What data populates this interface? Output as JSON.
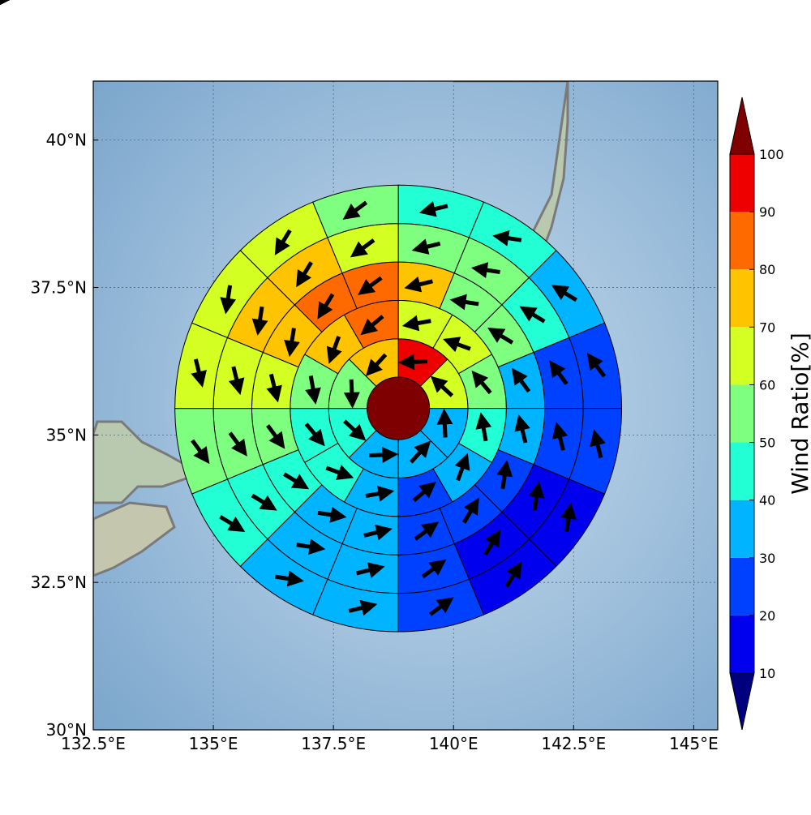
{
  "chart_data": {
    "type": "heatmap",
    "title": "",
    "xlabel": "",
    "ylabel": "",
    "xlim": [
      132.5,
      145.5
    ],
    "ylim": [
      30,
      41
    ],
    "x_ticks": [
      132.5,
      135,
      137.5,
      140,
      142.5,
      145
    ],
    "x_tick_labels": [
      "132.5°E",
      "135°E",
      "137.5°E",
      "140°E",
      "142.5°E",
      "145°E"
    ],
    "y_ticks": [
      30,
      32.5,
      35,
      37.5,
      40
    ],
    "y_tick_labels": [
      "30°N",
      "32.5°N",
      "35°N",
      "37.5°N",
      "40°N"
    ],
    "grid": true,
    "center": {
      "lon": 138.85,
      "lat": 35.45,
      "value": 100
    },
    "ring_bounds_deg": [
      0.65,
      1.45,
      2.25,
      3.05,
      3.85,
      4.65
    ],
    "sector_start_deg": 90,
    "sector_step_deg": 22.5,
    "sector_direction": "clockwise",
    "rings": [
      [
        90,
        60,
        30,
        30,
        30,
        40,
        50,
        70
      ],
      [
        60,
        60,
        50,
        40,
        30,
        20,
        30,
        40,
        40,
        50,
        70,
        80
      ],
      [
        70,
        50,
        50,
        30,
        30,
        20,
        20,
        20,
        30,
        30,
        40,
        50,
        60,
        70,
        80,
        80
      ],
      [
        50,
        50,
        40,
        20,
        20,
        10,
        10,
        20,
        30,
        30,
        40,
        50,
        60,
        70,
        70,
        60
      ],
      [
        40,
        40,
        30,
        20,
        20,
        10,
        10,
        20,
        30,
        30,
        40,
        50,
        60,
        60,
        60,
        50
      ],
      [
        40,
        40,
        30,
        20,
        20,
        10,
        10,
        20,
        30,
        30,
        40,
        50,
        60,
        60,
        60,
        50
      ]
    ],
    "colorbar": {
      "label": "Wind Ratio[%]",
      "ticks": [
        10,
        20,
        30,
        40,
        50,
        60,
        70,
        80,
        90,
        100
      ],
      "tick_labels": [
        "10",
        "20",
        "30",
        "40",
        "50",
        "60",
        "70",
        "80",
        "90",
        "100"
      ],
      "levels": [
        {
          "min": 0,
          "max": 10,
          "color": "#00007f"
        },
        {
          "min": 10,
          "max": 20,
          "color": "#0000ee"
        },
        {
          "min": 20,
          "max": 30,
          "color": "#0040ff"
        },
        {
          "min": 30,
          "max": 40,
          "color": "#00b4ff"
        },
        {
          "min": 40,
          "max": 50,
          "color": "#22ffd4"
        },
        {
          "min": 50,
          "max": 60,
          "color": "#7fff7f"
        },
        {
          "min": 60,
          "max": 70,
          "color": "#d4ff22"
        },
        {
          "min": 70,
          "max": 80,
          "color": "#ffc400"
        },
        {
          "min": 80,
          "max": 90,
          "color": "#ff6a00"
        },
        {
          "min": 90,
          "max": 100,
          "color": "#ee0000"
        },
        {
          "min": 100,
          "max": 110,
          "color": "#7f0000"
        }
      ],
      "extend": "both"
    },
    "background": {
      "ocean_color": "#8fb4d4",
      "land_color": "#b7cbb0",
      "coast_color": "#808080"
    }
  }
}
